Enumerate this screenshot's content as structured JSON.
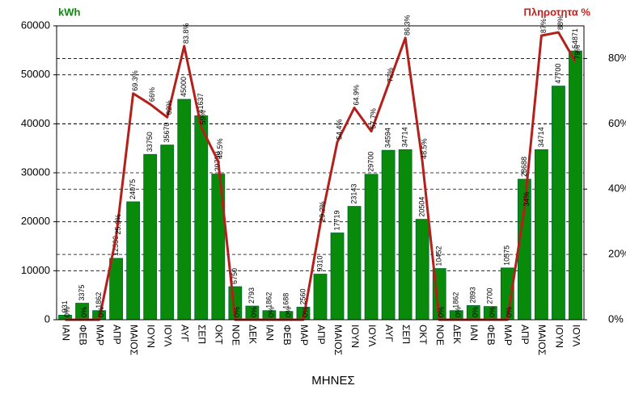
{
  "chart_data": {
    "type": "bar",
    "y_label": "kWh",
    "y2_label": "Πληροτητα %",
    "x_label": "ΜΗΝΕΣ",
    "categories": [
      "ΙΑΝ",
      "ΦΕΒ",
      "ΜΑΡ",
      "ΑΠΡ",
      "ΜΑΙΟΣ",
      "ΙΟΥΝ",
      "ΙΟΥΛ",
      "ΑΥΓ",
      "ΣΕΠ",
      "ΟΚΤ",
      "ΝΟΕ",
      "ΔΕΚ",
      "ΙΑΝ",
      "ΦΕΒ",
      "ΜΑΡ",
      "ΑΠΡ",
      "ΜΑΙΟΣ",
      "ΙΟΥΝ",
      "ΙΟΥΛ",
      "ΑΥΓ",
      "ΣΕΠ",
      "ΟΚΤ",
      "ΝΟΕ",
      "ΔΕΚ",
      "ΙΑΝ",
      "ΦΕΒ",
      "ΜΑΡ",
      "ΑΠΡ",
      "ΜΑΙΟΣ",
      "ΙΟΥΝ",
      "ΙΟΥΛ"
    ],
    "series": [
      {
        "type": "bar",
        "color": "#0a8a0a",
        "values": [
          931,
          3375,
          1862,
          12530,
          24075,
          33750,
          35670,
          45000,
          41637,
          29750,
          6750,
          2793,
          1862,
          1688,
          2560,
          9310,
          17719,
          23143,
          29700,
          34594,
          34714,
          20504,
          10452,
          1862,
          2893,
          2700,
          10575,
          28688,
          34714,
          47700,
          54871
        ]
      },
      {
        "type": "line",
        "axis": "y2",
        "color": "#b3201c",
        "values": [
          0,
          0,
          0,
          25.3,
          69.3,
          66,
          62,
          83.8,
          59,
          48.5,
          0,
          0,
          0,
          0,
          0,
          29.2,
          54.4,
          64.9,
          57.7,
          72,
          86.3,
          48.5,
          0,
          0,
          0,
          0,
          0,
          34,
          87,
          88,
          79
        ],
        "value_labels": [
          "0%",
          "0%",
          "0%",
          "25.3%",
          "69.3%",
          "66%",
          "62%",
          "83.8%",
          "59%",
          "48.5%",
          "0%",
          "0%",
          "0%",
          "0%",
          "0%",
          "29.2%",
          "54.4%",
          "64.9%",
          "57.7%",
          "72%",
          "86.3%",
          "48.5%",
          "0%",
          "0%",
          "0%",
          "0%",
          "0%",
          "34%",
          "87%",
          "88%",
          "79%"
        ]
      }
    ],
    "ylim": [
      0,
      60000
    ],
    "yticks": [
      0,
      10000,
      20000,
      30000,
      40000,
      50000,
      60000
    ],
    "y2lim": [
      0,
      90
    ],
    "y2ticks": [
      {
        "value": 0,
        "label": "0%"
      },
      {
        "value": 20,
        "label": "20%"
      },
      {
        "value": 40,
        "label": "40%"
      },
      {
        "value": 60,
        "label": "60%"
      },
      {
        "value": 80,
        "label": "80%"
      }
    ],
    "grid": true
  }
}
